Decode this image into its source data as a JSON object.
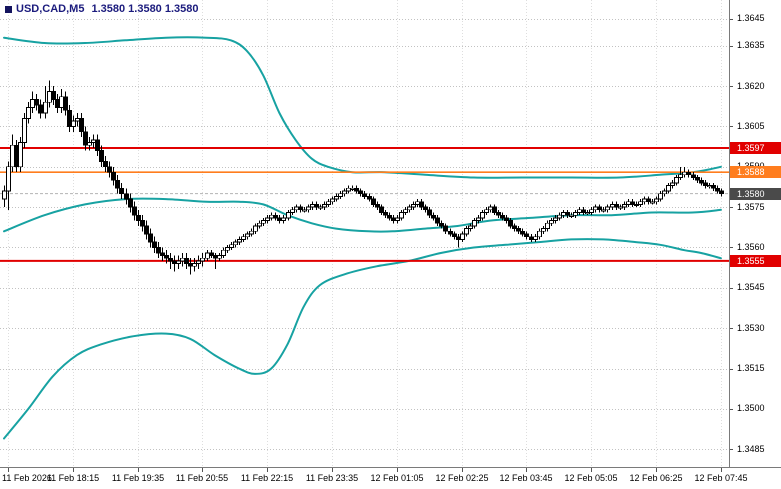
{
  "quote": {
    "symbol": "USD,CAD,M5",
    "values": [
      "1.3580",
      "1.3580",
      "1.3580"
    ]
  },
  "colors": {
    "background": "#ffffff",
    "header_text": "#1b1b7d",
    "grid": "#c2c2c2",
    "vgrid": "#dedede",
    "separator": "#7a7a7a",
    "axis_text": "#000000",
    "band": "#17a2a2",
    "bull": "#ffffff",
    "bear": "#000000",
    "candle_outline": "#000000",
    "resistance": "#e10000",
    "support": "#e10000",
    "orange_level": "#ff7d1e",
    "bid_badge": "#4a4a4a",
    "bid_line": "#b3b3b3"
  },
  "chart_data": {
    "type": "candlestick",
    "symbol": "USD/CAD",
    "timeframe": "M5",
    "y_axis": {
      "max": 1.3652,
      "min": 1.347839,
      "labels": [
        "1.3645",
        "1.3635",
        "1.3620",
        "1.3605",
        "1.3590",
        "1.3575",
        "1.3560",
        "1.3545",
        "1.3530",
        "1.3515",
        "1.3500",
        "1.3485"
      ]
    },
    "x_axis": {
      "labels": [
        {
          "text": "11 Feb 2026",
          "index": 1
        },
        {
          "text": "11 Feb 18:15",
          "index": 17
        },
        {
          "text": "11 Feb 19:35",
          "index": 33
        },
        {
          "text": "11 Feb 20:55",
          "index": 49
        },
        {
          "text": "11 Feb 22:15",
          "index": 65
        },
        {
          "text": "11 Feb 23:35",
          "index": 81
        },
        {
          "text": "12 Feb 01:05",
          "index": 97
        },
        {
          "text": "12 Feb 02:25",
          "index": 113
        },
        {
          "text": "12 Feb 03:45",
          "index": 129
        },
        {
          "text": "12 Feb 05:05",
          "index": 145
        },
        {
          "text": "12 Feb 06:25",
          "index": 161
        },
        {
          "text": "12 Feb 07:45",
          "index": 177
        }
      ]
    },
    "open_first": 1.3578,
    "closes": [
      1.3581,
      1.359,
      1.3598,
      1.359,
      1.3599,
      1.3608,
      1.3612,
      1.3615,
      1.3613,
      1.361,
      1.3614,
      1.3618,
      1.3615,
      1.3612,
      1.3616,
      1.3611,
      1.3605,
      1.3607,
      1.3608,
      1.3603,
      1.3598,
      1.3599,
      1.36,
      1.3596,
      1.3592,
      1.359,
      1.3588,
      1.3585,
      1.3582,
      1.358,
      1.3578,
      1.3575,
      1.3572,
      1.357,
      1.3568,
      1.3565,
      1.3562,
      1.356,
      1.3558,
      1.3557,
      1.3556,
      1.3555,
      1.3554,
      1.3555,
      1.3556,
      1.3554,
      1.3553,
      1.3554,
      1.3555,
      1.3556,
      1.3558,
      1.3557,
      1.3556,
      1.3557,
      1.3559,
      1.356,
      1.3561,
      1.3562,
      1.3563,
      1.3564,
      1.3565,
      1.3566,
      1.3568,
      1.3569,
      1.357,
      1.3571,
      1.3572,
      1.3571,
      1.357,
      1.3571,
      1.3573,
      1.3574,
      1.3575,
      1.3574,
      1.3574,
      1.3575,
      1.3576,
      1.3575,
      1.3575,
      1.3576,
      1.3577,
      1.3578,
      1.3579,
      1.358,
      1.3581,
      1.3582,
      1.3582,
      1.3581,
      1.358,
      1.3579,
      1.3578,
      1.3576,
      1.3575,
      1.3573,
      1.3572,
      1.3571,
      1.357,
      1.3571,
      1.3573,
      1.3574,
      1.3575,
      1.3576,
      1.3577,
      1.3575,
      1.3574,
      1.3572,
      1.3571,
      1.3569,
      1.3568,
      1.3566,
      1.3565,
      1.3564,
      1.3563,
      1.3565,
      1.3567,
      1.3568,
      1.357,
      1.3571,
      1.3573,
      1.3574,
      1.3575,
      1.3573,
      1.3572,
      1.3571,
      1.357,
      1.3568,
      1.3567,
      1.3566,
      1.3565,
      1.3564,
      1.3563,
      1.3564,
      1.3566,
      1.3567,
      1.3569,
      1.357,
      1.3571,
      1.3572,
      1.3573,
      1.3572,
      1.3572,
      1.3573,
      1.3574,
      1.3573,
      1.3573,
      1.3574,
      1.3575,
      1.3574,
      1.3574,
      1.3575,
      1.3576,
      1.3575,
      1.3575,
      1.3576,
      1.3577,
      1.3576,
      1.3576,
      1.3577,
      1.3578,
      1.3577,
      1.3577,
      1.3578,
      1.358,
      1.3581,
      1.3583,
      1.3584,
      1.3586,
      1.3587,
      1.3588,
      1.3587,
      1.3586,
      1.3585,
      1.3584,
      1.3583,
      1.3583,
      1.3582,
      1.3581,
      1.358
    ],
    "wick": {
      "volatile_until": 50,
      "volatile": 0.0002,
      "quiet": 0.0001
    },
    "wick_overrides": {
      "0": {
        "l": 1.3575
      },
      "1": {
        "l": 1.3574
      },
      "2": {
        "h": 1.3602
      },
      "7": {
        "h": 1.3618
      },
      "10": {
        "h": 1.362
      },
      "11": {
        "h": 1.3622
      },
      "12": {
        "h": 1.362
      },
      "14": {
        "h": 1.3619
      },
      "41": {
        "l": 1.3552
      },
      "42": {
        "l": 1.3551
      },
      "46": {
        "l": 1.355
      },
      "47": {
        "l": 1.3551
      },
      "52": {
        "l": 1.3552
      },
      "112": {
        "l": 1.356
      },
      "167": {
        "h": 1.359
      },
      "168": {
        "h": 1.359
      }
    },
    "hlines": [
      {
        "price": 1.3597,
        "label": "1.3597",
        "color_key": "resistance",
        "width": 2,
        "name": "resistance-line"
      },
      {
        "price": 1.3588,
        "label": "1.3588",
        "color_key": "orange_level",
        "width": 1.6,
        "name": "minor-resistance-line"
      },
      {
        "price": 1.3555,
        "label": "1.3555",
        "color_key": "support",
        "width": 2,
        "name": "support-line"
      }
    ],
    "current_price": {
      "price": 1.358,
      "label": "1.3580"
    },
    "bands": {
      "color_key": "band",
      "upper": [
        [
          0,
          1.3638
        ],
        [
          10,
          1.3636
        ],
        [
          20,
          1.3636
        ],
        [
          30,
          1.3637
        ],
        [
          40,
          1.3638
        ],
        [
          50,
          1.3638
        ],
        [
          56,
          1.3637
        ],
        [
          60,
          1.3633
        ],
        [
          64,
          1.3624
        ],
        [
          68,
          1.361
        ],
        [
          72,
          1.36
        ],
        [
          76,
          1.3593
        ],
        [
          80,
          1.359
        ],
        [
          86,
          1.3588
        ],
        [
          94,
          1.3588
        ],
        [
          104,
          1.3587
        ],
        [
          116,
          1.3586
        ],
        [
          128,
          1.3586
        ],
        [
          140,
          1.3586
        ],
        [
          152,
          1.3586
        ],
        [
          162,
          1.3587
        ],
        [
          170,
          1.3588
        ],
        [
          174,
          1.3589
        ],
        [
          177,
          1.359
        ]
      ],
      "middle": [
        [
          0,
          1.3566
        ],
        [
          10,
          1.3572
        ],
        [
          20,
          1.3576
        ],
        [
          30,
          1.3578
        ],
        [
          40,
          1.3578
        ],
        [
          50,
          1.3577
        ],
        [
          58,
          1.3577
        ],
        [
          64,
          1.3576
        ],
        [
          70,
          1.3572
        ],
        [
          76,
          1.3569
        ],
        [
          82,
          1.3567
        ],
        [
          90,
          1.3566
        ],
        [
          96,
          1.3566
        ],
        [
          104,
          1.3567
        ],
        [
          112,
          1.3568
        ],
        [
          120,
          1.357
        ],
        [
          130,
          1.3571
        ],
        [
          140,
          1.3572
        ],
        [
          150,
          1.3572
        ],
        [
          160,
          1.3573
        ],
        [
          170,
          1.3573
        ],
        [
          177,
          1.3574
        ]
      ],
      "lower": [
        [
          0,
          1.3489
        ],
        [
          6,
          1.35
        ],
        [
          12,
          1.3512
        ],
        [
          18,
          1.352
        ],
        [
          24,
          1.3524
        ],
        [
          32,
          1.3527
        ],
        [
          40,
          1.3528
        ],
        [
          46,
          1.3526
        ],
        [
          52,
          1.352
        ],
        [
          58,
          1.3515
        ],
        [
          62,
          1.3513
        ],
        [
          66,
          1.3515
        ],
        [
          70,
          1.3524
        ],
        [
          74,
          1.3538
        ],
        [
          78,
          1.3546
        ],
        [
          84,
          1.355
        ],
        [
          92,
          1.3553
        ],
        [
          100,
          1.3555
        ],
        [
          108,
          1.3558
        ],
        [
          116,
          1.356
        ],
        [
          124,
          1.3561
        ],
        [
          132,
          1.3562
        ],
        [
          140,
          1.3563
        ],
        [
          148,
          1.3563
        ],
        [
          156,
          1.3562
        ],
        [
          162,
          1.3561
        ],
        [
          168,
          1.3559
        ],
        [
          172,
          1.3558
        ],
        [
          177,
          1.3556
        ]
      ]
    }
  }
}
